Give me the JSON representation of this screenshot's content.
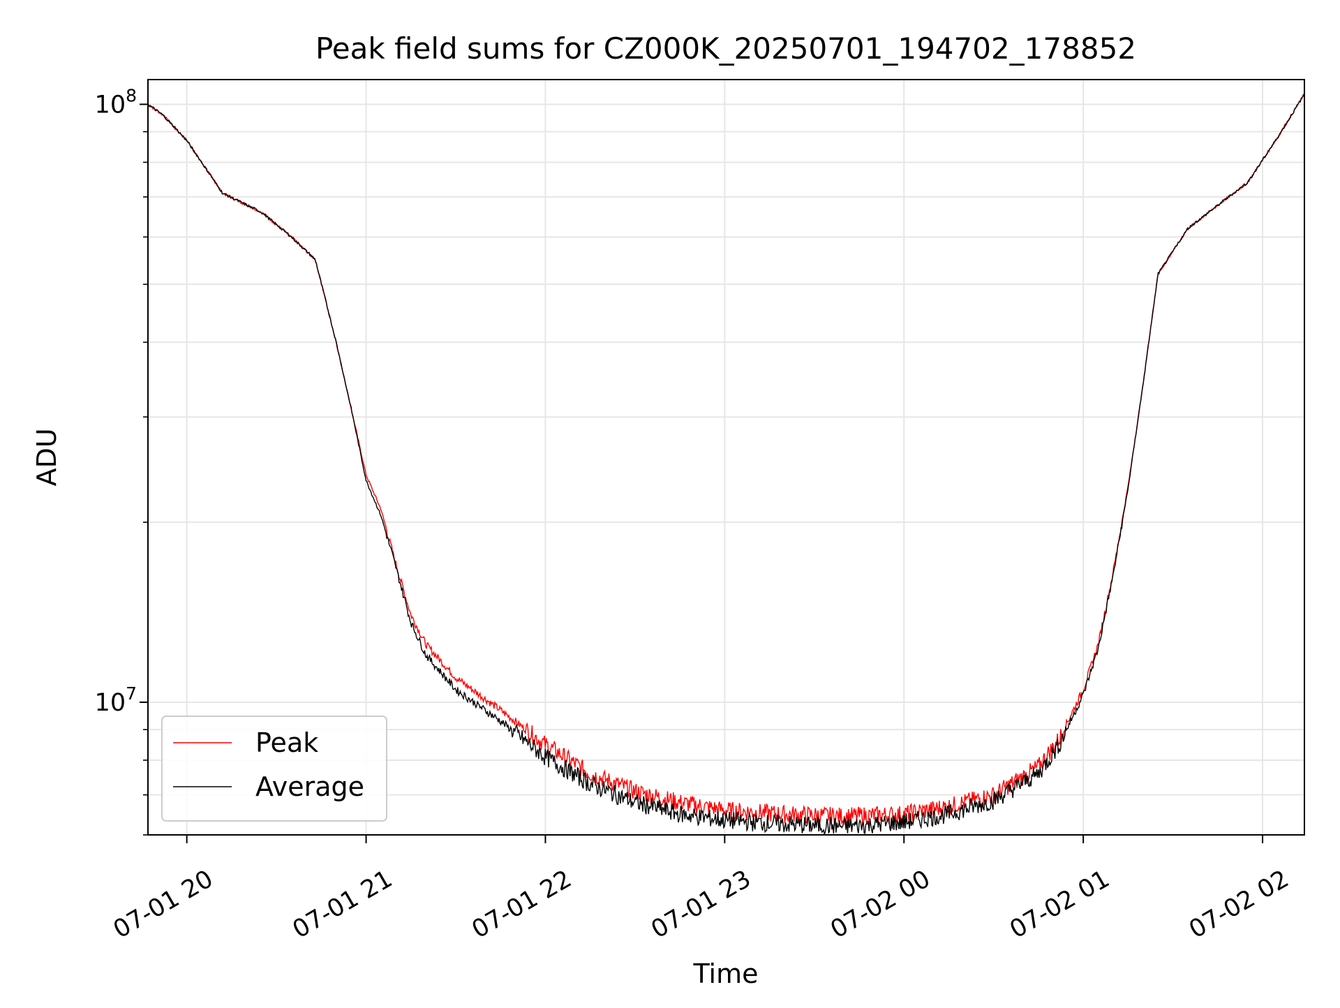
{
  "chart_data": {
    "type": "line",
    "title": "Peak field sums for CZ000K_20250701_194702_178852",
    "xlabel": "Time",
    "ylabel": "ADU",
    "yscale": "log",
    "grid": true,
    "legend_position": "lower-left",
    "x_tick_labels": [
      "07-01 20",
      "07-01 21",
      "07-01 22",
      "07-01 23",
      "07-02 00",
      "07-02 01",
      "07-02 02"
    ],
    "y_tick_labels": [
      {
        "base": "10",
        "exp": "7"
      },
      {
        "base": "10",
        "exp": "8"
      }
    ],
    "xlim": [
      "2025-07-01 19:47",
      "2025-07-02 02:14"
    ],
    "ylim": [
      6000000,
      110000000
    ],
    "x": [
      "2025-07-01 19:47",
      "2025-07-01 19:52",
      "2025-07-01 20:00",
      "2025-07-01 20:12",
      "2025-07-01 20:25",
      "2025-07-01 20:35",
      "2025-07-01 20:43",
      "2025-07-01 20:50",
      "2025-07-01 20:55",
      "2025-07-01 21:00",
      "2025-07-01 21:05",
      "2025-07-01 21:10",
      "2025-07-01 21:15",
      "2025-07-01 21:20",
      "2025-07-01 21:30",
      "2025-07-01 21:45",
      "2025-07-01 22:00",
      "2025-07-01 22:15",
      "2025-07-01 22:30",
      "2025-07-01 22:45",
      "2025-07-01 23:00",
      "2025-07-01 23:20",
      "2025-07-01 23:40",
      "2025-07-02 00:00",
      "2025-07-02 00:15",
      "2025-07-02 00:30",
      "2025-07-02 00:45",
      "2025-07-02 00:52",
      "2025-07-02 01:00",
      "2025-07-02 01:05",
      "2025-07-02 01:10",
      "2025-07-02 01:15",
      "2025-07-02 01:20",
      "2025-07-02 01:25",
      "2025-07-02 01:35",
      "2025-07-02 01:47",
      "2025-07-02 01:55",
      "2025-07-02 02:05",
      "2025-07-02 02:14"
    ],
    "series": [
      {
        "name": "Peak",
        "color": "#ff0000",
        "values": [
          100000000,
          96000000,
          87000000,
          71000000,
          66000000,
          60000000,
          55000000,
          40000000,
          31000000,
          24000000,
          21000000,
          17000000,
          14000000,
          12500000,
          11000000,
          9700000,
          8500000,
          7600000,
          7100000,
          6800000,
          6600000,
          6500000,
          6450000,
          6500000,
          6700000,
          7000000,
          7800000,
          8700000,
          10500000,
          12500000,
          16500000,
          23000000,
          34000000,
          52000000,
          62000000,
          69000000,
          74000000,
          88000000,
          104000000
        ]
      },
      {
        "name": "Average",
        "color": "#000000",
        "values": [
          100000000,
          96000000,
          87000000,
          71000000,
          66000000,
          60000000,
          55000000,
          40000000,
          31000000,
          23500000,
          20500000,
          16800000,
          13600000,
          12000000,
          10500000,
          9300000,
          8100000,
          7300000,
          6800000,
          6500000,
          6350000,
          6250000,
          6200000,
          6300000,
          6500000,
          6850000,
          7600000,
          8500000,
          10300000,
          12300000,
          16300000,
          22800000,
          34000000,
          52000000,
          62000000,
          69000000,
          74000000,
          88000000,
          104000000
        ]
      }
    ]
  }
}
